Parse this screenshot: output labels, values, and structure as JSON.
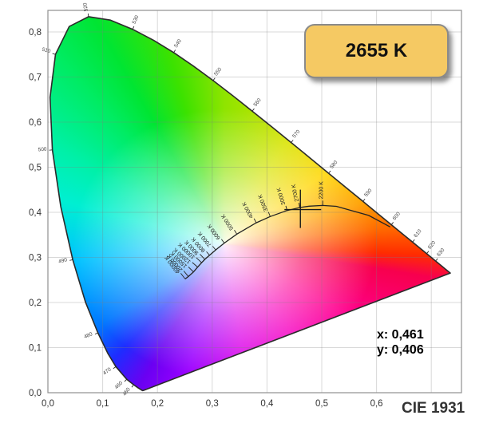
{
  "badge": {
    "label": "2655 K"
  },
  "readout": {
    "x_label": "x: 0,461",
    "y_label": "y: 0,406"
  },
  "footer": {
    "label": "CIE 1931"
  },
  "colors": {
    "badge_fill": "#F5C963",
    "badge_border": "#8A8A8A",
    "grid": "rgba(125,125,125,0.30)",
    "plot_border": "#909090",
    "locus_outline": "#2B2B2B",
    "planckian": "#222222",
    "marker": "#1A1A1A",
    "tick_text": "#333333"
  },
  "chart_data": {
    "type": "scatter",
    "title": "CIE 1931",
    "xlim": [
      0,
      0.755
    ],
    "ylim": [
      0,
      0.848
    ],
    "grid": true,
    "x_ticks": [
      {
        "value": 0.0,
        "label": "0,0"
      },
      {
        "value": 0.1,
        "label": "0,1"
      },
      {
        "value": 0.2,
        "label": "0,2"
      },
      {
        "value": 0.3,
        "label": "0,3"
      },
      {
        "value": 0.4,
        "label": "0,4"
      },
      {
        "value": 0.5,
        "label": "0,5"
      },
      {
        "value": 0.6,
        "label": "0,6"
      }
    ],
    "y_ticks": [
      {
        "value": 0.0,
        "label": "0,0"
      },
      {
        "value": 0.1,
        "label": "0,1"
      },
      {
        "value": 0.2,
        "label": "0,2"
      },
      {
        "value": 0.3,
        "label": "0,3"
      },
      {
        "value": 0.4,
        "label": "0,4"
      },
      {
        "value": 0.5,
        "label": "0,5"
      },
      {
        "value": 0.6,
        "label": "0,6"
      },
      {
        "value": 0.7,
        "label": "0,7"
      },
      {
        "value": 0.8,
        "label": "0,8"
      }
    ],
    "marker": {
      "x": 0.461,
      "y": 0.406,
      "cct": "2655 K"
    },
    "spectral_locus": [
      [
        380,
        0.1741,
        0.005
      ],
      [
        410,
        0.1726,
        0.0048
      ],
      [
        440,
        0.1644,
        0.0109
      ],
      [
        450,
        0.1566,
        0.0177
      ],
      [
        460,
        0.144,
        0.0297
      ],
      [
        470,
        0.1241,
        0.0578
      ],
      [
        475,
        0.1096,
        0.0868
      ],
      [
        480,
        0.0913,
        0.1327
      ],
      [
        485,
        0.0687,
        0.2007
      ],
      [
        490,
        0.0454,
        0.295
      ],
      [
        495,
        0.0235,
        0.4127
      ],
      [
        500,
        0.0082,
        0.5384
      ],
      [
        505,
        0.0039,
        0.6548
      ],
      [
        510,
        0.0139,
        0.7502
      ],
      [
        515,
        0.0389,
        0.812
      ],
      [
        520,
        0.0743,
        0.8338
      ],
      [
        525,
        0.1142,
        0.8262
      ],
      [
        530,
        0.1547,
        0.8059
      ],
      [
        535,
        0.1929,
        0.7816
      ],
      [
        540,
        0.2296,
        0.7543
      ],
      [
        545,
        0.2658,
        0.7243
      ],
      [
        550,
        0.3016,
        0.6923
      ],
      [
        555,
        0.3373,
        0.6589
      ],
      [
        560,
        0.3731,
        0.6245
      ],
      [
        565,
        0.4087,
        0.5896
      ],
      [
        570,
        0.4441,
        0.5547
      ],
      [
        575,
        0.4788,
        0.5202
      ],
      [
        580,
        0.5125,
        0.4866
      ],
      [
        585,
        0.5448,
        0.4544
      ],
      [
        590,
        0.5752,
        0.4242
      ],
      [
        595,
        0.6029,
        0.3965
      ],
      [
        600,
        0.627,
        0.3725
      ],
      [
        605,
        0.6482,
        0.3514
      ],
      [
        610,
        0.6658,
        0.334
      ],
      [
        620,
        0.6915,
        0.3083
      ],
      [
        630,
        0.7079,
        0.292
      ],
      [
        640,
        0.719,
        0.2809
      ],
      [
        650,
        0.726,
        0.274
      ],
      [
        700,
        0.7347,
        0.2653
      ]
    ],
    "wavelength_labels": [
      450,
      460,
      470,
      480,
      490,
      500,
      510,
      520,
      530,
      540,
      550,
      560,
      570,
      580,
      590,
      600,
      610,
      620,
      630
    ],
    "planckian_locus": [
      [
        1200,
        0.6249,
        0.3676
      ],
      [
        1500,
        0.5857,
        0.3931
      ],
      [
        2000,
        0.5267,
        0.4133
      ],
      [
        2200,
        0.5018,
        0.4152
      ],
      [
        2500,
        0.477,
        0.4137
      ],
      [
        2700,
        0.4599,
        0.4106
      ],
      [
        3000,
        0.4369,
        0.4041
      ],
      [
        3500,
        0.4059,
        0.3907
      ],
      [
        4000,
        0.3805,
        0.3768
      ],
      [
        5000,
        0.3451,
        0.3516
      ],
      [
        6000,
        0.3221,
        0.3318
      ],
      [
        7000,
        0.3064,
        0.3166
      ],
      [
        8000,
        0.2952,
        0.3048
      ],
      [
        9000,
        0.2865,
        0.2956
      ],
      [
        10000,
        0.2807,
        0.2884
      ],
      [
        12000,
        0.2734,
        0.2785
      ],
      [
        15000,
        0.2659,
        0.2677
      ],
      [
        20000,
        0.2565,
        0.2577
      ],
      [
        40000,
        0.2506,
        0.2522
      ]
    ],
    "cct_tick_labels": [
      {
        "t": 2200,
        "label": "2200 K"
      },
      {
        "t": 2700,
        "label": "2700 K"
      },
      {
        "t": 3000,
        "label": "3000 K"
      },
      {
        "t": 3500,
        "label": "3500 K"
      },
      {
        "t": 4000,
        "label": "4000 K"
      },
      {
        "t": 5000,
        "label": "5000 K"
      },
      {
        "t": 6000,
        "label": "6000 K"
      },
      {
        "t": 7000,
        "label": "7000 K"
      },
      {
        "t": 8000,
        "label": "8000 K"
      },
      {
        "t": 9000,
        "label": "9000 K"
      },
      {
        "t": 10000,
        "label": "10000 K"
      },
      {
        "t": 12000,
        "label": "12000 K"
      },
      {
        "t": 15000,
        "label": "15000 K"
      },
      {
        "t": 20000,
        "label": "20000 K"
      },
      {
        "t": 40000,
        "label": "40000 K"
      }
    ],
    "gamut_gradient": [
      {
        "deg": 0,
        "color": "#8FE400"
      },
      {
        "deg": 31,
        "color": "#D8E300"
      },
      {
        "deg": 55,
        "color": "#FFD600"
      },
      {
        "deg": 73,
        "color": "#FFA200"
      },
      {
        "deg": 84,
        "color": "#FF6D00"
      },
      {
        "deg": 93,
        "color": "#FF2D00"
      },
      {
        "deg": 99,
        "color": "#F7004E"
      },
      {
        "deg": 120,
        "color": "#FF0090"
      },
      {
        "deg": 143,
        "color": "#F600C0"
      },
      {
        "deg": 170,
        "color": "#DD00E8"
      },
      {
        "deg": 196,
        "color": "#9A00FF"
      },
      {
        "deg": 211,
        "color": "#6A00F2"
      },
      {
        "deg": 224,
        "color": "#1E2CFF"
      },
      {
        "deg": 237,
        "color": "#0077FF"
      },
      {
        "deg": 264,
        "color": "#00C3FF"
      },
      {
        "deg": 285,
        "color": "#00EFD2"
      },
      {
        "deg": 300,
        "color": "#00F0A8"
      },
      {
        "deg": 318,
        "color": "#00EC64"
      },
      {
        "deg": 330,
        "color": "#00E532"
      },
      {
        "deg": 344,
        "color": "#3CE200"
      },
      {
        "deg": 360,
        "color": "#8FE400"
      }
    ]
  }
}
